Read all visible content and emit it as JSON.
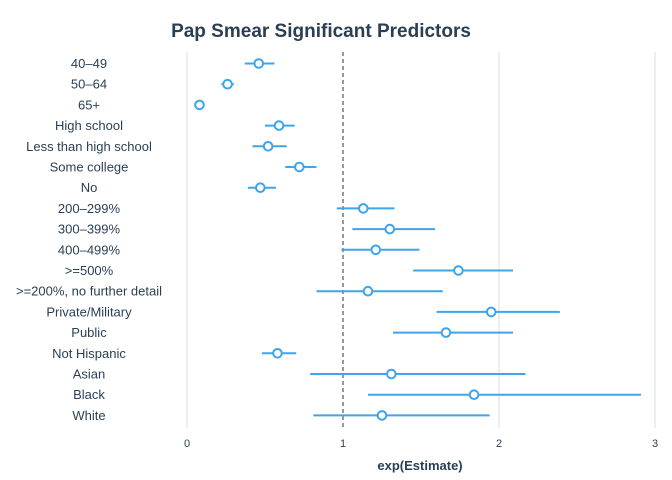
{
  "chart_data": {
    "type": "scatter",
    "title": "Pap Smear Significant Predictors",
    "xlabel": "exp(Estimate)",
    "ylabel": "",
    "xlim": [
      0,
      3
    ],
    "xticks": [
      0,
      1,
      2,
      3
    ],
    "reference_line": 1,
    "grid": true,
    "colors": {
      "point": "#3fa5e8",
      "title": "#2a3f54",
      "grid": "#dddddd",
      "reference": "#333333"
    },
    "series": [
      {
        "points": [
          {
            "label": "40–49",
            "estimate": 0.46,
            "low": 0.37,
            "high": 0.56
          },
          {
            "label": "50–64",
            "estimate": 0.26,
            "low": 0.22,
            "high": 0.3
          },
          {
            "label": "65+",
            "estimate": 0.08,
            "low": 0.06,
            "high": 0.1
          },
          {
            "label": "High school",
            "estimate": 0.59,
            "low": 0.5,
            "high": 0.69
          },
          {
            "label": "Less than high school",
            "estimate": 0.52,
            "low": 0.42,
            "high": 0.64
          },
          {
            "label": "Some college",
            "estimate": 0.72,
            "low": 0.63,
            "high": 0.83
          },
          {
            "label": "No",
            "estimate": 0.47,
            "low": 0.39,
            "high": 0.57
          },
          {
            "label": "200–299%",
            "estimate": 1.13,
            "low": 0.96,
            "high": 1.33
          },
          {
            "label": "300–399%",
            "estimate": 1.3,
            "low": 1.06,
            "high": 1.59
          },
          {
            "label": "400–499%",
            "estimate": 1.21,
            "low": 0.99,
            "high": 1.49
          },
          {
            "label": ">=500%",
            "estimate": 1.74,
            "low": 1.45,
            "high": 2.09
          },
          {
            "label": ">=200%, no further detail",
            "estimate": 1.16,
            "low": 0.83,
            "high": 1.64
          },
          {
            "label": "Private/Military",
            "estimate": 1.95,
            "low": 1.6,
            "high": 2.39
          },
          {
            "label": "Public",
            "estimate": 1.66,
            "low": 1.32,
            "high": 2.09
          },
          {
            "label": "Not Hispanic",
            "estimate": 0.58,
            "low": 0.48,
            "high": 0.7
          },
          {
            "label": "Asian",
            "estimate": 1.31,
            "low": 0.79,
            "high": 2.17
          },
          {
            "label": "Black",
            "estimate": 1.84,
            "low": 1.16,
            "high": 2.91
          },
          {
            "label": "White",
            "estimate": 1.25,
            "low": 0.81,
            "high": 1.94
          }
        ]
      }
    ]
  }
}
